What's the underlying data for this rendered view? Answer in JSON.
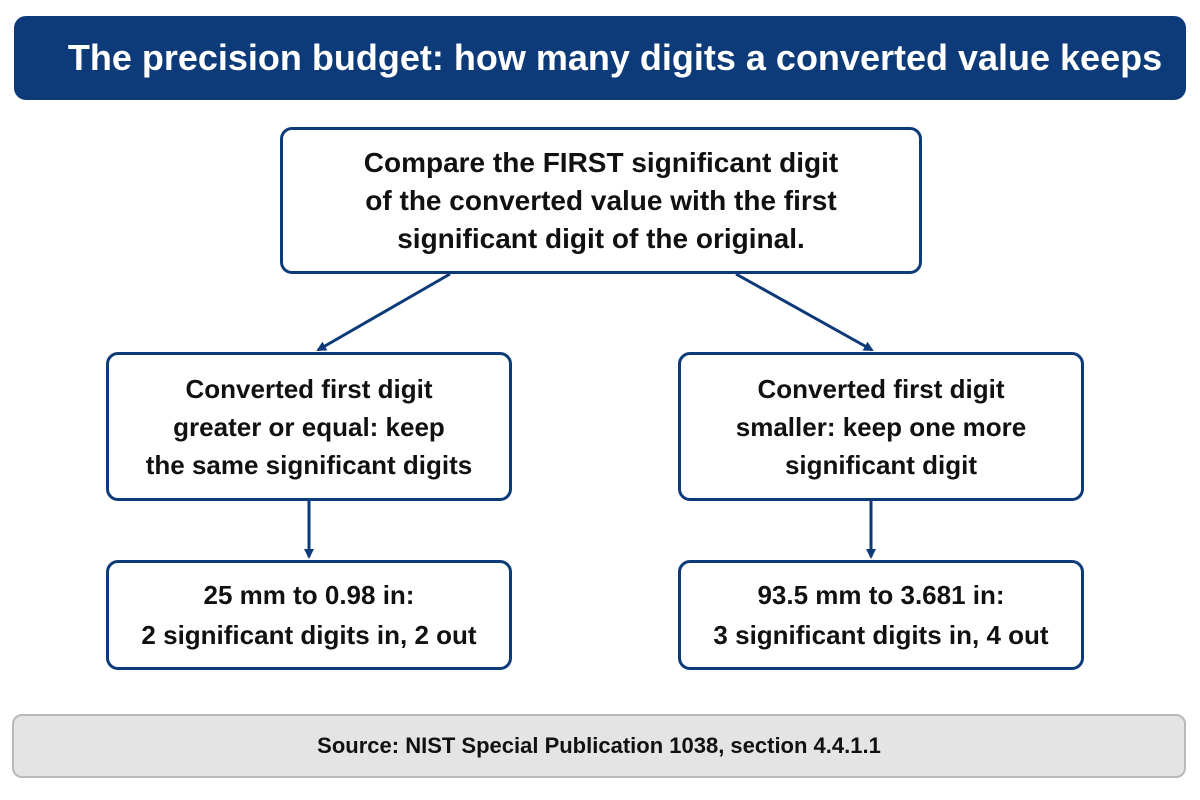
{
  "title": "The precision budget: how many digits a converted value keeps",
  "colors": {
    "accent": "#0d3a78",
    "footer_bg": "#e4e4e4"
  },
  "flow": {
    "question": "Compare the FIRST significant digit\nof the converted value with the first\nsignificant digit of the original.",
    "branches": [
      {
        "rule": "Converted first digit\ngreater or equal: keep\nthe same significant digits",
        "example": "25 mm to 0.98 in:\n2 significant digits in, 2 out"
      },
      {
        "rule": "Converted first digit\nsmaller: keep one more\nsignificant digit",
        "example": "93.5 mm to 3.681 in:\n3 significant digits in, 4 out"
      }
    ]
  },
  "source": "Source:  NIST Special Publication 1038, section 4.4.1.1"
}
